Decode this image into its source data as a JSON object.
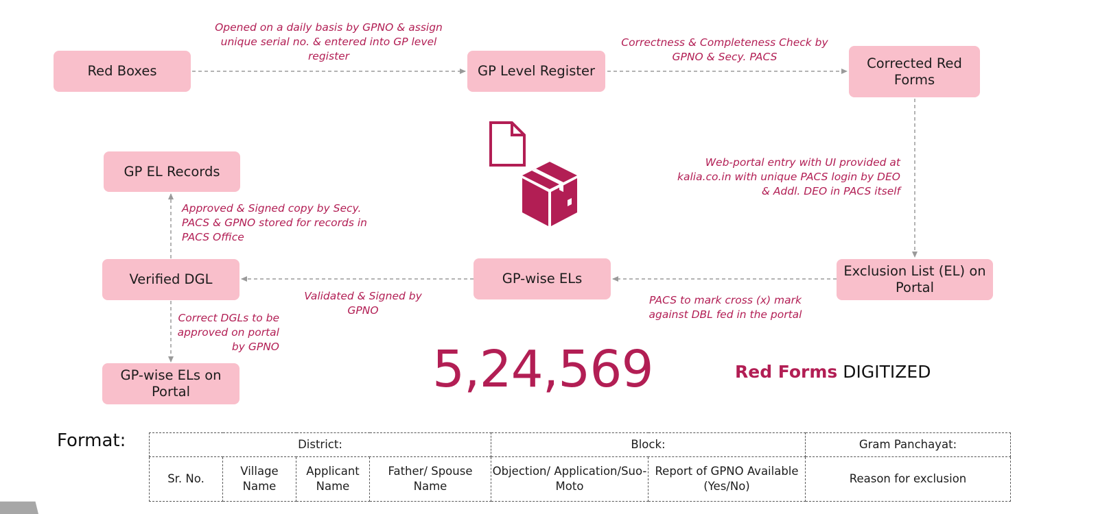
{
  "nodes": {
    "red_boxes": "Red Boxes",
    "gp_level_register": "GP Level Register",
    "corrected_red_forms": "Corrected Red Forms",
    "exclusion_list": "Exclusion List (EL) on Portal",
    "gp_wise_els": "GP-wise ELs",
    "verified_dgl": "Verified DGL",
    "gp_el_records": "GP EL Records",
    "gp_wise_els_portal": "GP-wise ELs on Portal"
  },
  "notes": {
    "opened_daily": "Opened on a daily basis by GPNO & assign unique serial no. & entered into GP level register",
    "correctness_check": "Correctness & Completeness Check  by GPNO & Secy. PACS",
    "web_portal_entry": "Web-portal entry with UI provided at kalia.co.in with unique PACS login by DEO & Addl. DEO in PACS itself",
    "pacs_mark": "PACS to mark cross (x) mark against DBL fed in the portal",
    "validated_signed": "Validated & Signed by GPNO",
    "approved_signed": "Approved & Signed copy by Secy. PACS & GPNO stored for records in PACS Office",
    "correct_dgls": "Correct DGLs to be approved on portal by GPNO"
  },
  "icons": {
    "document": "document-icon",
    "package": "package-box-icon"
  },
  "colors": {
    "box_fill": "#f9bfcb",
    "accent": "#b21e54",
    "arrow": "#9a9a9a"
  },
  "stat": {
    "value": "5,24,569",
    "label_bold": "Red Forms",
    "label_rest": " DIGITIZED"
  },
  "format": {
    "label": "Format:",
    "header_row": [
      "District:",
      "Block:",
      "Gram Panchayat:"
    ],
    "columns": [
      "Sr. No.",
      "Village Name",
      "Applicant Name",
      "Father/ Spouse Name",
      "Objection/ Application/Suo-Moto",
      "Report of GPNO Available (Yes/No)",
      "Reason for exclusion"
    ]
  }
}
